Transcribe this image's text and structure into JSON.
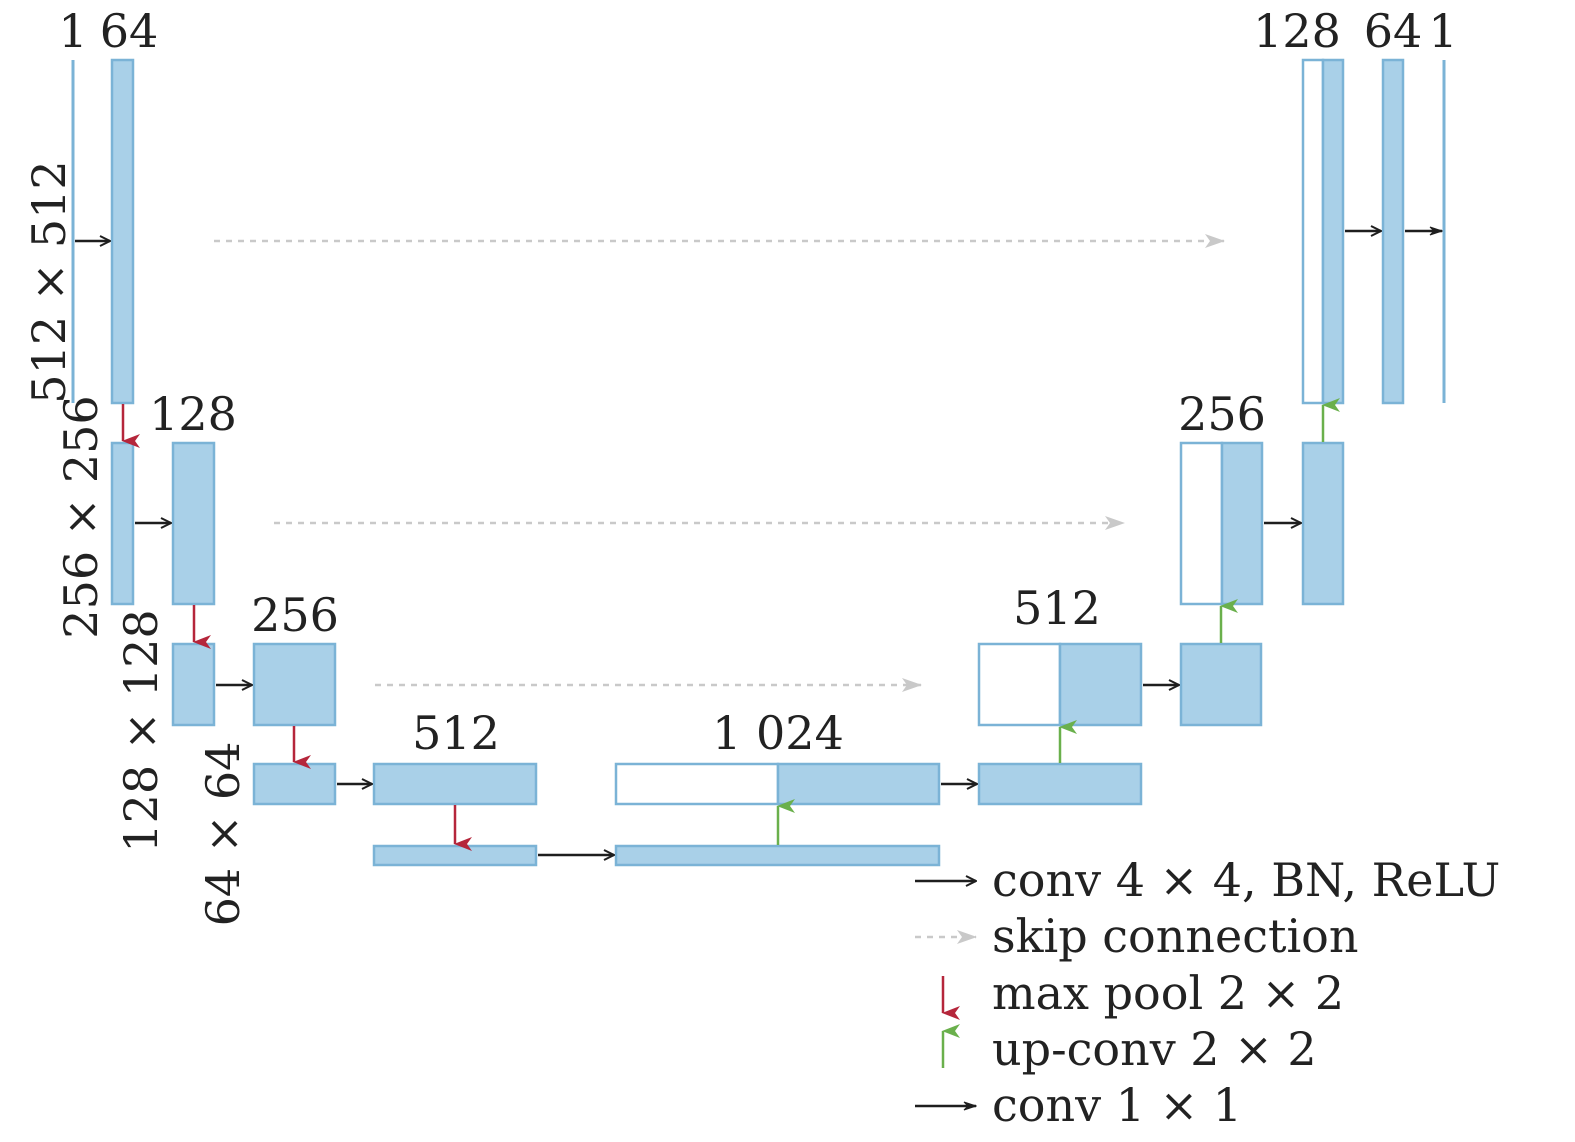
{
  "colors": {
    "block_fill": "#a9d0e8",
    "block_stroke": "#7bb3d6",
    "concat_fill": "#ffffff",
    "conv_arrow": "#1e1e1e",
    "skip_arrow": "#c9c9c9",
    "maxpool_arrow": "#b5263b",
    "upconv_arrow": "#6ab04c"
  },
  "channel_labels": {
    "input_ch": "1",
    "level1_ch": "64",
    "level2_ch": "128",
    "level3_ch": "256",
    "level4_ch": "512",
    "bottleneck_ch": "1 024",
    "up4_ch": "512",
    "up3_ch": "256",
    "up1_ch": "128",
    "out64_ch": "64",
    "output_ch": "1"
  },
  "resolution_labels": {
    "level1": "512 × 512",
    "level2": "256 × 256",
    "level3": "128 × 128",
    "level4": "64 × 64"
  },
  "legend": {
    "conv": "conv 4 × 4, BN, ReLU",
    "skip": "skip connection",
    "maxpool": "max pool 2 × 2",
    "upconv": "up-conv 2 × 2",
    "conv1x1": "conv 1 × 1"
  },
  "icons": {
    "conv": "arrow-right-icon",
    "skip": "dashed-arrow-right-icon",
    "maxpool": "arrow-down-icon",
    "upconv": "arrow-up-icon",
    "conv1x1": "thin-arrow-right-icon"
  }
}
